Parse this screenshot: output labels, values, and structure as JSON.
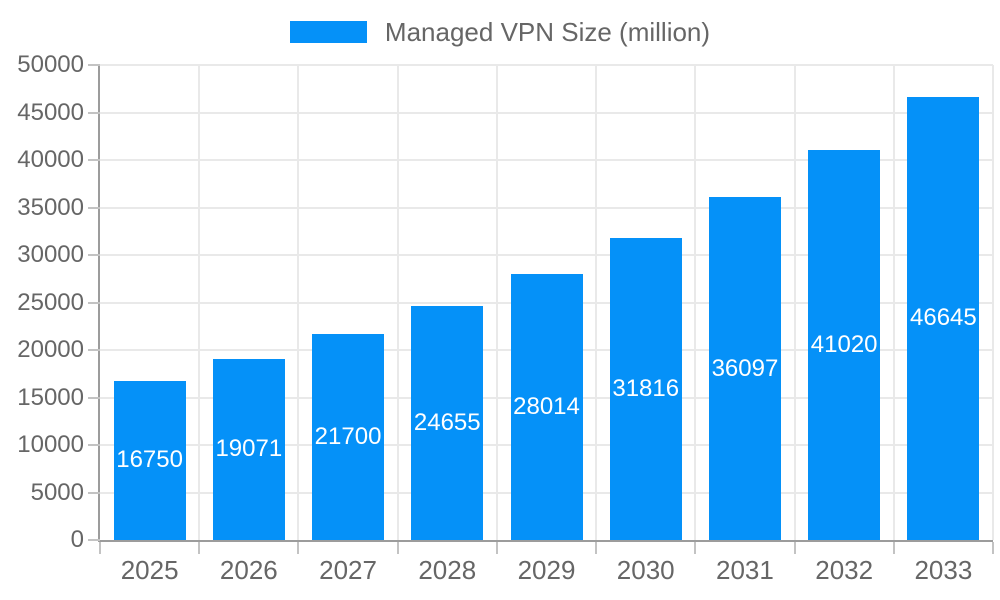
{
  "chart_data": {
    "type": "bar",
    "title": "",
    "legend": "Managed VPN Size (million)",
    "categories": [
      "2025",
      "2026",
      "2027",
      "2028",
      "2029",
      "2030",
      "2031",
      "2032",
      "2033"
    ],
    "values": [
      16750,
      19071,
      21700,
      24655,
      28014,
      31816,
      36097,
      41020,
      46645
    ],
    "xlabel": "",
    "ylabel": "",
    "ylim": [
      0,
      50000
    ],
    "yticks": [
      0,
      5000,
      10000,
      15000,
      20000,
      25000,
      30000,
      35000,
      40000,
      45000,
      50000
    ],
    "grid": true,
    "legend_position": "top-center",
    "value_labels": "inside-center",
    "colors": {
      "bar": "#0591f8",
      "value_text": "#ffffff",
      "axis_text": "#666666",
      "axis_line": "#9c9c9c",
      "grid": "#e9e9e9",
      "tick": "#c3c3c3",
      "background": "#ffffff"
    }
  }
}
